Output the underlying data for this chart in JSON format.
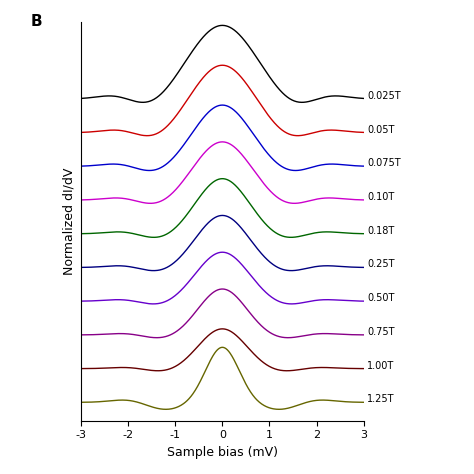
{
  "title": "B",
  "xlabel": "Sample bias (mV)",
  "ylabel": "Normalized dI/dV",
  "xlim": [
    -3,
    3
  ],
  "fields": [
    "0.025T",
    "0.05T",
    "0.075T",
    "0.10T",
    "0.18T",
    "0.25T",
    "0.50T",
    "0.75T",
    "1.00T",
    "1.25T"
  ],
  "colors": [
    "#000000",
    "#cc0000",
    "#0000cc",
    "#cc00cc",
    "#006600",
    "#000080",
    "#6600cc",
    "#880088",
    "#660000",
    "#666600"
  ],
  "offsets": [
    9,
    8,
    7,
    6,
    5,
    4,
    3,
    2,
    1,
    0
  ],
  "peak_heights": [
    1.2,
    1.1,
    1.0,
    0.95,
    0.9,
    0.85,
    0.8,
    0.75,
    0.65,
    0.9
  ],
  "peak_widths": [
    0.7,
    0.65,
    0.6,
    0.6,
    0.55,
    0.55,
    0.55,
    0.5,
    0.5,
    0.35
  ],
  "side_dip_depths": [
    0.15,
    0.13,
    0.12,
    0.11,
    0.1,
    0.09,
    0.08,
    0.07,
    0.06,
    0.12
  ],
  "side_dip_positions": [
    1.5,
    1.4,
    1.4,
    1.35,
    1.3,
    1.3,
    1.3,
    1.25,
    1.2,
    1.2
  ],
  "background_color": "#ffffff"
}
